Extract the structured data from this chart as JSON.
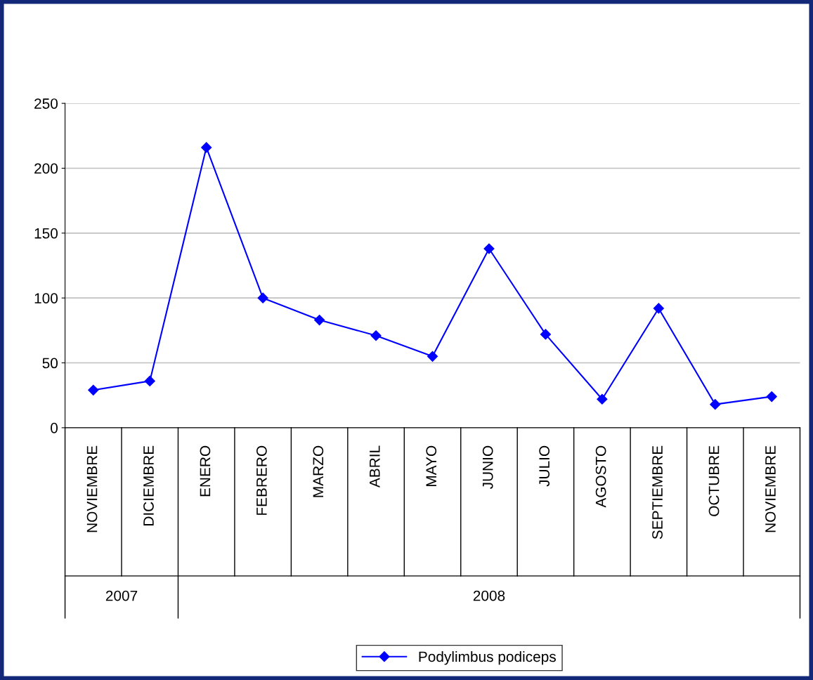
{
  "chart_data": {
    "type": "line",
    "categories": [
      "NOVIEMBRE",
      "DICIEMBRE",
      "ENERO",
      "FEBRERO",
      "MARZO",
      "ABRIL",
      "MAYO",
      "JUNIO",
      "JULIO",
      "AGOSTO",
      "SEPTIEMBRE",
      "OCTUBRE",
      "NOVIEMBRE"
    ],
    "series": [
      {
        "name": "Podylimbus podiceps",
        "color": "#0000ff",
        "values": [
          29,
          36,
          216,
          100,
          83,
          71,
          55,
          138,
          72,
          22,
          92,
          18,
          24
        ]
      }
    ],
    "annotations": [
      "2007",
      "2008"
    ],
    "ylim": [
      0,
      250
    ],
    "yticks": [
      0,
      50,
      100,
      150,
      200,
      250
    ],
    "grid": "y",
    "legend": "bottom",
    "marker": "diamond",
    "line_style": "solid"
  }
}
